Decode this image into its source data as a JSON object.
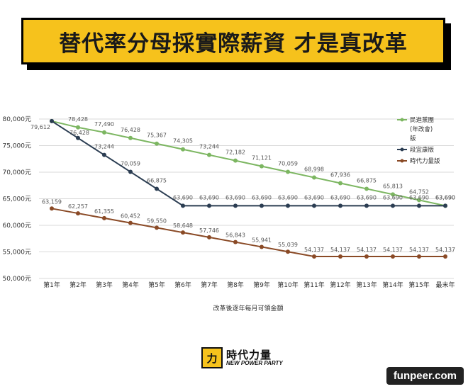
{
  "banner": {
    "title": "替代率分母採實際薪資  才是真改革"
  },
  "chart_data": {
    "type": "line",
    "title": "",
    "xlabel": "改革後逐年每月可領金額",
    "ylabel": "",
    "ylim": [
      50000,
      80000
    ],
    "yticks": [
      80000,
      75000,
      70000,
      65000,
      60000,
      55000,
      50000
    ],
    "ytick_labels": [
      "80,000元",
      "75,000元",
      "70,000元",
      "65,000元",
      "60,000元",
      "55,000元",
      "50,000元"
    ],
    "categories": [
      "第1年",
      "第2年",
      "第3年",
      "第4年",
      "第5年",
      "第6年",
      "第7年",
      "第8年",
      "第9年",
      "第10年",
      "第11年",
      "第12年",
      "第13年",
      "第14年",
      "第15年",
      "最末年"
    ],
    "series": [
      {
        "name": "民進黨團(年改會)版",
        "color": "#7cb661",
        "values": [
          79612,
          78428,
          77490,
          76428,
          75367,
          74305,
          73244,
          72182,
          71121,
          70059,
          68998,
          67936,
          66875,
          65813,
          64752,
          63690
        ],
        "labels": [
          "79,612",
          "78,428",
          "77,490",
          "76,428",
          "75,367",
          "74,305",
          "73,244",
          "72,182",
          "71,121",
          "70,059",
          "68,998",
          "67,936",
          "66,875",
          "65,813",
          "64,752",
          "63,690"
        ]
      },
      {
        "name": "段宜康版",
        "color": "#2b3d52",
        "values": [
          79612,
          76428,
          73244,
          70059,
          66875,
          63690,
          63690,
          63690,
          63690,
          63690,
          63690,
          63690,
          63690,
          63690,
          63690,
          63690
        ],
        "labels": [
          "79,612",
          "76,428",
          "73,244",
          "70,059",
          "66,875",
          "63,690",
          "63,690",
          "63,690",
          "63,690",
          "63,690",
          "63,690",
          "63,690",
          "63,690",
          "63,690",
          "63,690",
          "63,690"
        ]
      },
      {
        "name": "時代力量版",
        "color": "#8a4a26",
        "values": [
          63159,
          62257,
          61355,
          60452,
          59550,
          58648,
          57746,
          56843,
          55941,
          55039,
          54137,
          54137,
          54137,
          54137,
          54137,
          54137
        ],
        "labels": [
          "63,159",
          "62,257",
          "61,355",
          "60,452",
          "59,550",
          "58,648",
          "57,746",
          "56,843",
          "55,941",
          "55,039",
          "54,137",
          "54,137",
          "54,137",
          "54,137",
          "54,137",
          "54,137"
        ]
      }
    ],
    "legend": [
      "民進黨團",
      "(年改會)",
      "版",
      "段宜康版",
      "時代力量版"
    ]
  },
  "logo": {
    "zh": "時代力量",
    "en": "NEW POWER PARTY",
    "mark": "力"
  },
  "watermark": "funpeer.com"
}
